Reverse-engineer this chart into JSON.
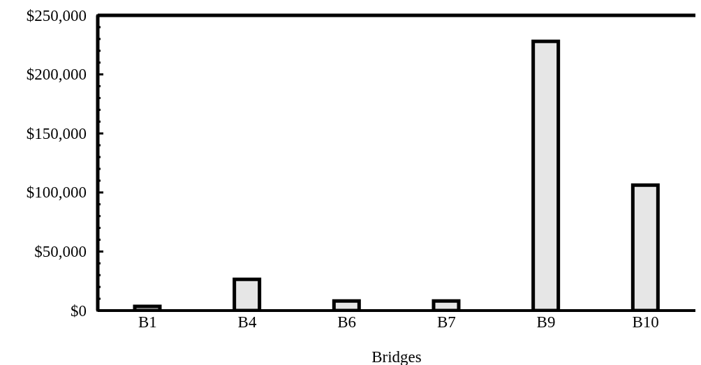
{
  "chart_data": {
    "type": "bar",
    "xlabel": "Bridges",
    "categories": [
      "B1",
      "B4",
      "B6",
      "B7",
      "B9",
      "B10"
    ],
    "values": [
      3500,
      26400,
      8100,
      8100,
      228000,
      106200
    ],
    "color": "#e6e6e6",
    "ylim": [
      0,
      250000
    ],
    "yticks": [
      {
        "value": 0,
        "label": "$0"
      },
      {
        "value": 10000,
        "label": null
      },
      {
        "value": 20000,
        "label": null
      },
      {
        "value": 30000,
        "label": null
      },
      {
        "value": 40000,
        "label": null
      },
      {
        "value": 50000,
        "label": "$50,000"
      },
      {
        "value": 60000,
        "label": null
      },
      {
        "value": 70000,
        "label": null
      },
      {
        "value": 80000,
        "label": null
      },
      {
        "value": 90000,
        "label": null
      },
      {
        "value": 100000,
        "label": "$100,000"
      },
      {
        "value": 110000,
        "label": null
      },
      {
        "value": 120000,
        "label": null
      },
      {
        "value": 130000,
        "label": null
      },
      {
        "value": 140000,
        "label": null
      },
      {
        "value": 150000,
        "label": "$150,000"
      },
      {
        "value": 160000,
        "label": null
      },
      {
        "value": 170000,
        "label": null
      },
      {
        "value": 180000,
        "label": null
      },
      {
        "value": 190000,
        "label": null
      },
      {
        "value": 200000,
        "label": "$200,000"
      },
      {
        "value": 210000,
        "label": null
      },
      {
        "value": 220000,
        "label": null
      },
      {
        "value": 230000,
        "label": null
      },
      {
        "value": 240000,
        "label": null
      },
      {
        "value": 250000,
        "label": "$250,000"
      }
    ],
    "grid": false,
    "legend": false
  }
}
